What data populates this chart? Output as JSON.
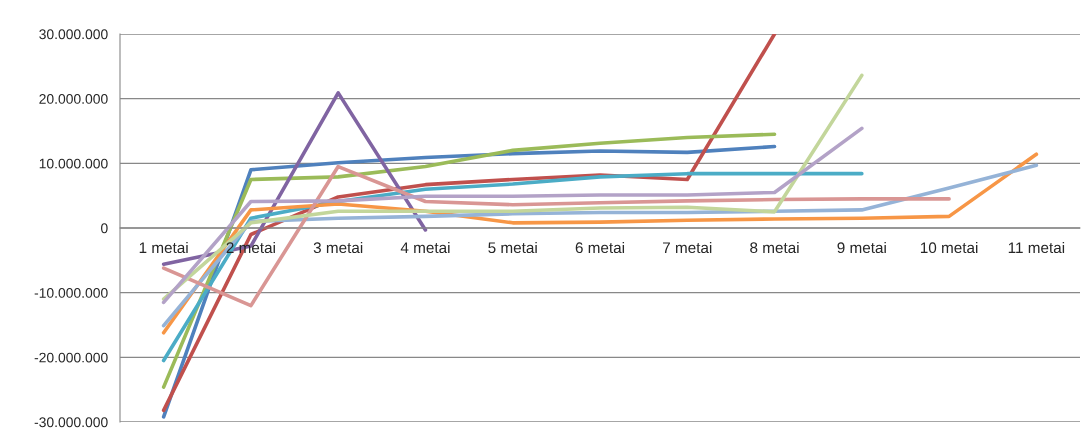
{
  "chart_data": {
    "type": "line",
    "categories": [
      "1 metai",
      "2 metai",
      "3 metai",
      "4 metai",
      "5 metai",
      "6 metai",
      "7 metai",
      "8 metai",
      "9 metai",
      "10 metai",
      "11 metai"
    ],
    "series": [
      {
        "color": "#4f81bd",
        "values": [
          -29200000,
          9000000,
          10100000,
          10900000,
          11500000,
          11900000,
          11700000,
          12600000,
          null,
          null,
          null
        ]
      },
      {
        "color": "#c0504d",
        "values": [
          -28200000,
          -1000000,
          4800000,
          6700000,
          7500000,
          8200000,
          7500000,
          30000000,
          null,
          null,
          null
        ]
      },
      {
        "color": "#9bbb59",
        "values": [
          -24600000,
          7500000,
          7900000,
          9500000,
          12000000,
          13100000,
          14000000,
          14500000,
          null,
          null,
          null
        ]
      },
      {
        "color": "#8064a2",
        "values": [
          -5600000,
          -2800000,
          20900000,
          -300000,
          null,
          null,
          null,
          null,
          null,
          null,
          null
        ]
      },
      {
        "color": "#4bacc6",
        "values": [
          -20500000,
          1500000,
          4100000,
          6000000,
          6800000,
          7900000,
          8400000,
          8400000,
          8400000,
          null,
          null
        ]
      },
      {
        "color": "#f79646",
        "values": [
          -16200000,
          2800000,
          3700000,
          2600000,
          800000,
          900000,
          1200000,
          1400000,
          1500000,
          1800000,
          11400000
        ]
      },
      {
        "color": "#95b3d7",
        "values": [
          -15100000,
          1000000,
          1500000,
          1800000,
          2200000,
          2400000,
          2400000,
          2600000,
          2800000,
          6200000,
          9700000
        ]
      },
      {
        "color": "#d99694",
        "values": [
          -6200000,
          -12000000,
          9500000,
          4100000,
          3600000,
          3900000,
          4200000,
          4400000,
          4500000,
          4500000,
          null
        ]
      },
      {
        "color": "#c3d69b",
        "values": [
          -11000000,
          800000,
          2600000,
          2600000,
          2600000,
          3100000,
          3200000,
          2500000,
          23600000,
          null,
          null
        ]
      },
      {
        "color": "#b3a2c7",
        "values": [
          -11500000,
          4100000,
          4200000,
          4900000,
          4900000,
          5100000,
          5100000,
          5500000,
          15400000,
          null,
          null
        ]
      }
    ],
    "ylim": [
      -30000000,
      30000000
    ],
    "yticks": [
      {
        "value": -30000000,
        "label": "-30.000.000"
      },
      {
        "value": -20000000,
        "label": "-20.000.000"
      },
      {
        "value": -10000000,
        "label": "-10.000.000"
      },
      0,
      {
        "value": 10000000,
        "label": "10.000.000"
      },
      {
        "value": 20000000,
        "label": "20.000.000"
      },
      {
        "value": 30000000,
        "label": "30.000.000"
      }
    ],
    "grid": "y",
    "legend": false,
    "marker": "none",
    "line_style": "solid"
  }
}
